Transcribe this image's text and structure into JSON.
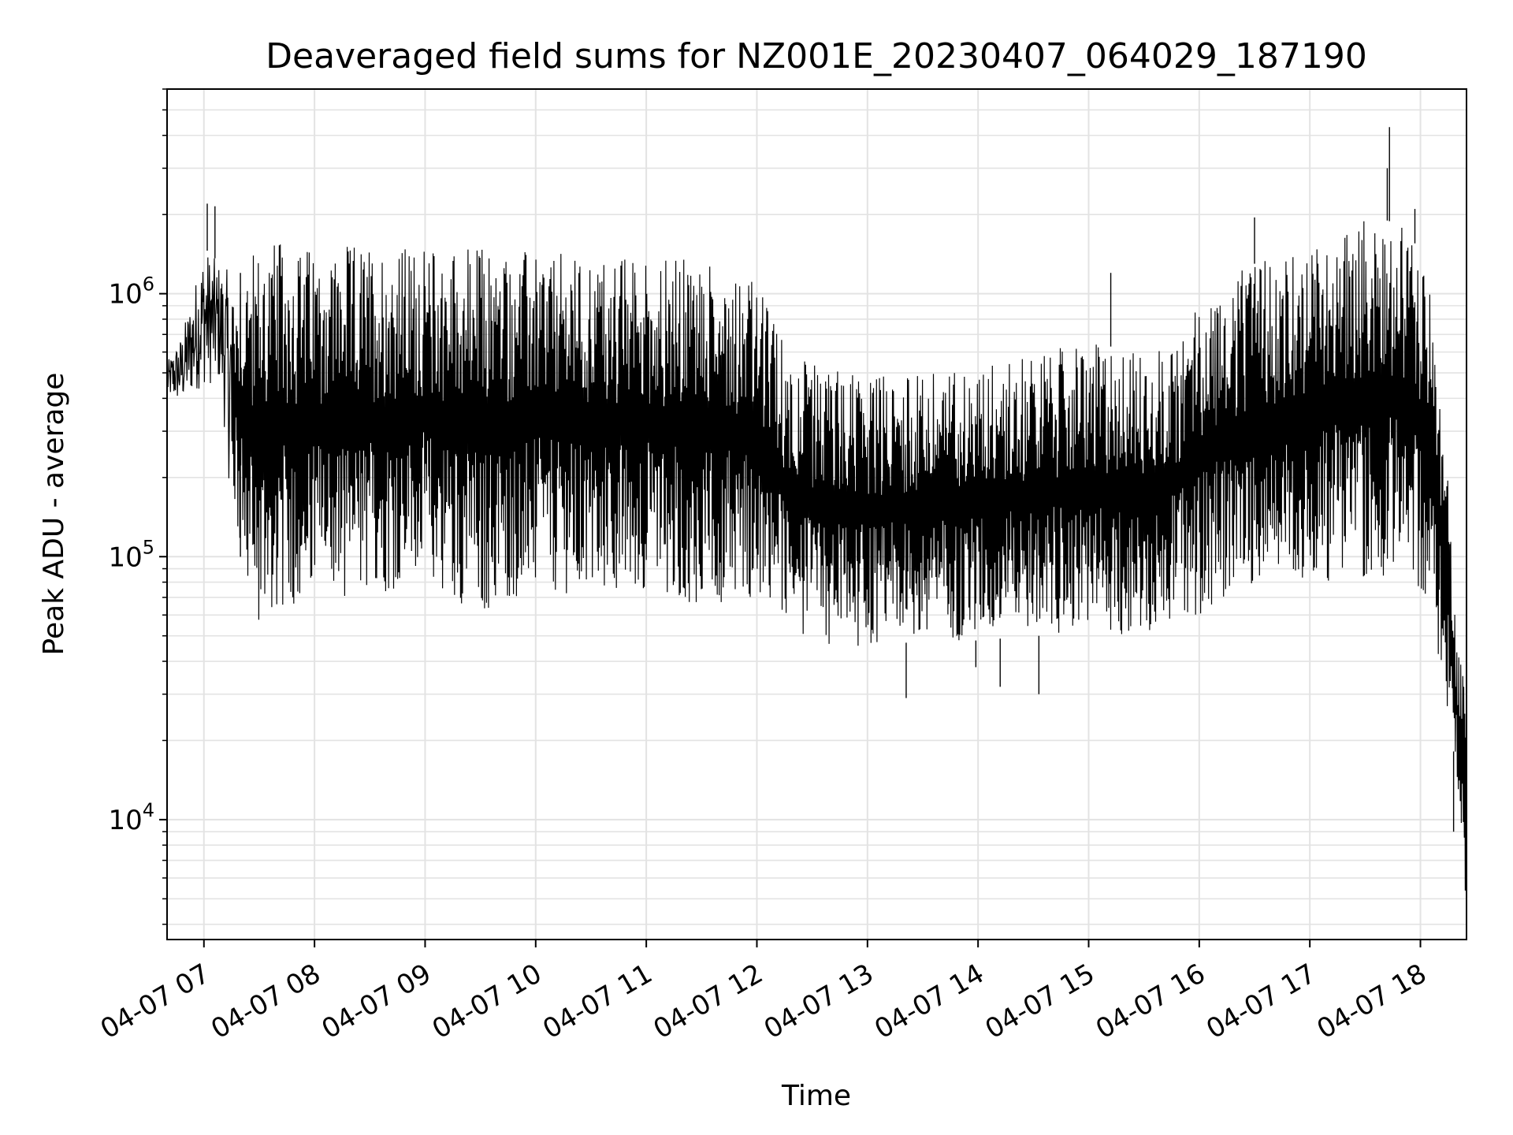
{
  "chart_data": {
    "type": "line",
    "title": "Deaveraged field sums for NZ001E_20230407_064029_187190",
    "xlabel": "Time",
    "ylabel": "Peak ADU - average",
    "x_scale": "time",
    "y_scale": "log",
    "xlim": [
      "04-07 06:40",
      "04-07 18:25"
    ],
    "ylim": [
      3500,
      6000000
    ],
    "grid": true,
    "line_color": "#000000",
    "grid_color": "#e3e3e3",
    "x_ticks": [
      "04-07 07",
      "04-07 08",
      "04-07 09",
      "04-07 10",
      "04-07 11",
      "04-07 12",
      "04-07 13",
      "04-07 14",
      "04-07 15",
      "04-07 16",
      "04-07 17",
      "04-07 18"
    ],
    "y_ticks": [
      {
        "value": 10000,
        "base": "10",
        "exp": "4"
      },
      {
        "value": 100000,
        "base": "10",
        "exp": "5"
      },
      {
        "value": 1000000,
        "base": "10",
        "exp": "6"
      }
    ],
    "series": [
      {
        "x_unit": "hour of 04-07",
        "envelope": [
          {
            "x": 6.67,
            "low": 400000,
            "high": 550000
          },
          {
            "x": 6.8,
            "low": 380000,
            "high": 700000
          },
          {
            "x": 7.0,
            "low": 450000,
            "high": 1500000
          },
          {
            "x": 7.15,
            "low": 450000,
            "high": 1300000
          },
          {
            "x": 7.25,
            "low": 150000,
            "high": 1200000
          },
          {
            "x": 7.4,
            "low": 70000,
            "high": 1400000
          },
          {
            "x": 7.5,
            "low": 55000,
            "high": 1500000
          },
          {
            "x": 7.6,
            "low": 60000,
            "high": 1600000
          },
          {
            "x": 8.0,
            "low": 70000,
            "high": 1500000
          },
          {
            "x": 8.5,
            "low": 70000,
            "high": 1550000
          },
          {
            "x": 9.0,
            "low": 80000,
            "high": 1500000
          },
          {
            "x": 9.5,
            "low": 60000,
            "high": 1550000
          },
          {
            "x": 10.0,
            "low": 75000,
            "high": 1450000
          },
          {
            "x": 10.5,
            "low": 70000,
            "high": 1400000
          },
          {
            "x": 11.0,
            "low": 75000,
            "high": 1400000
          },
          {
            "x": 11.5,
            "low": 65000,
            "high": 1350000
          },
          {
            "x": 11.9,
            "low": 70000,
            "high": 1300000
          },
          {
            "x": 12.1,
            "low": 65000,
            "high": 900000
          },
          {
            "x": 12.3,
            "low": 50000,
            "high": 600000
          },
          {
            "x": 12.5,
            "low": 45000,
            "high": 550000
          },
          {
            "x": 13.0,
            "low": 45000,
            "high": 500000
          },
          {
            "x": 13.5,
            "low": 48000,
            "high": 500000
          },
          {
            "x": 14.0,
            "low": 48000,
            "high": 550000
          },
          {
            "x": 14.5,
            "low": 50000,
            "high": 600000
          },
          {
            "x": 15.0,
            "low": 50000,
            "high": 650000
          },
          {
            "x": 15.5,
            "low": 50000,
            "high": 600000
          },
          {
            "x": 15.8,
            "low": 60000,
            "high": 650000
          },
          {
            "x": 16.0,
            "low": 60000,
            "high": 1000000
          },
          {
            "x": 16.5,
            "low": 80000,
            "high": 1300000
          },
          {
            "x": 17.0,
            "low": 80000,
            "high": 1500000
          },
          {
            "x": 17.5,
            "low": 80000,
            "high": 2000000
          },
          {
            "x": 17.9,
            "low": 90000,
            "high": 1800000
          },
          {
            "x": 18.1,
            "low": 60000,
            "high": 1000000
          },
          {
            "x": 18.25,
            "low": 25000,
            "high": 200000
          },
          {
            "x": 18.33,
            "low": 15000,
            "high": 45000
          },
          {
            "x": 18.41,
            "low": 5000,
            "high": 40000
          }
        ],
        "spikes": [
          {
            "x": 7.03,
            "y": 2200000
          },
          {
            "x": 7.1,
            "y": 2150000
          },
          {
            "x": 7.33,
            "y": 1200000
          },
          {
            "x": 13.35,
            "y": 29000
          },
          {
            "x": 13.98,
            "y": 38000
          },
          {
            "x": 14.2,
            "y": 32000
          },
          {
            "x": 14.55,
            "y": 30000
          },
          {
            "x": 15.2,
            "y": 1200000
          },
          {
            "x": 16.5,
            "y": 1950000
          },
          {
            "x": 17.72,
            "y": 4300000
          },
          {
            "x": 17.7,
            "y": 3000000
          },
          {
            "x": 17.95,
            "y": 2100000
          },
          {
            "x": 18.3,
            "y": 9000
          }
        ]
      }
    ]
  }
}
